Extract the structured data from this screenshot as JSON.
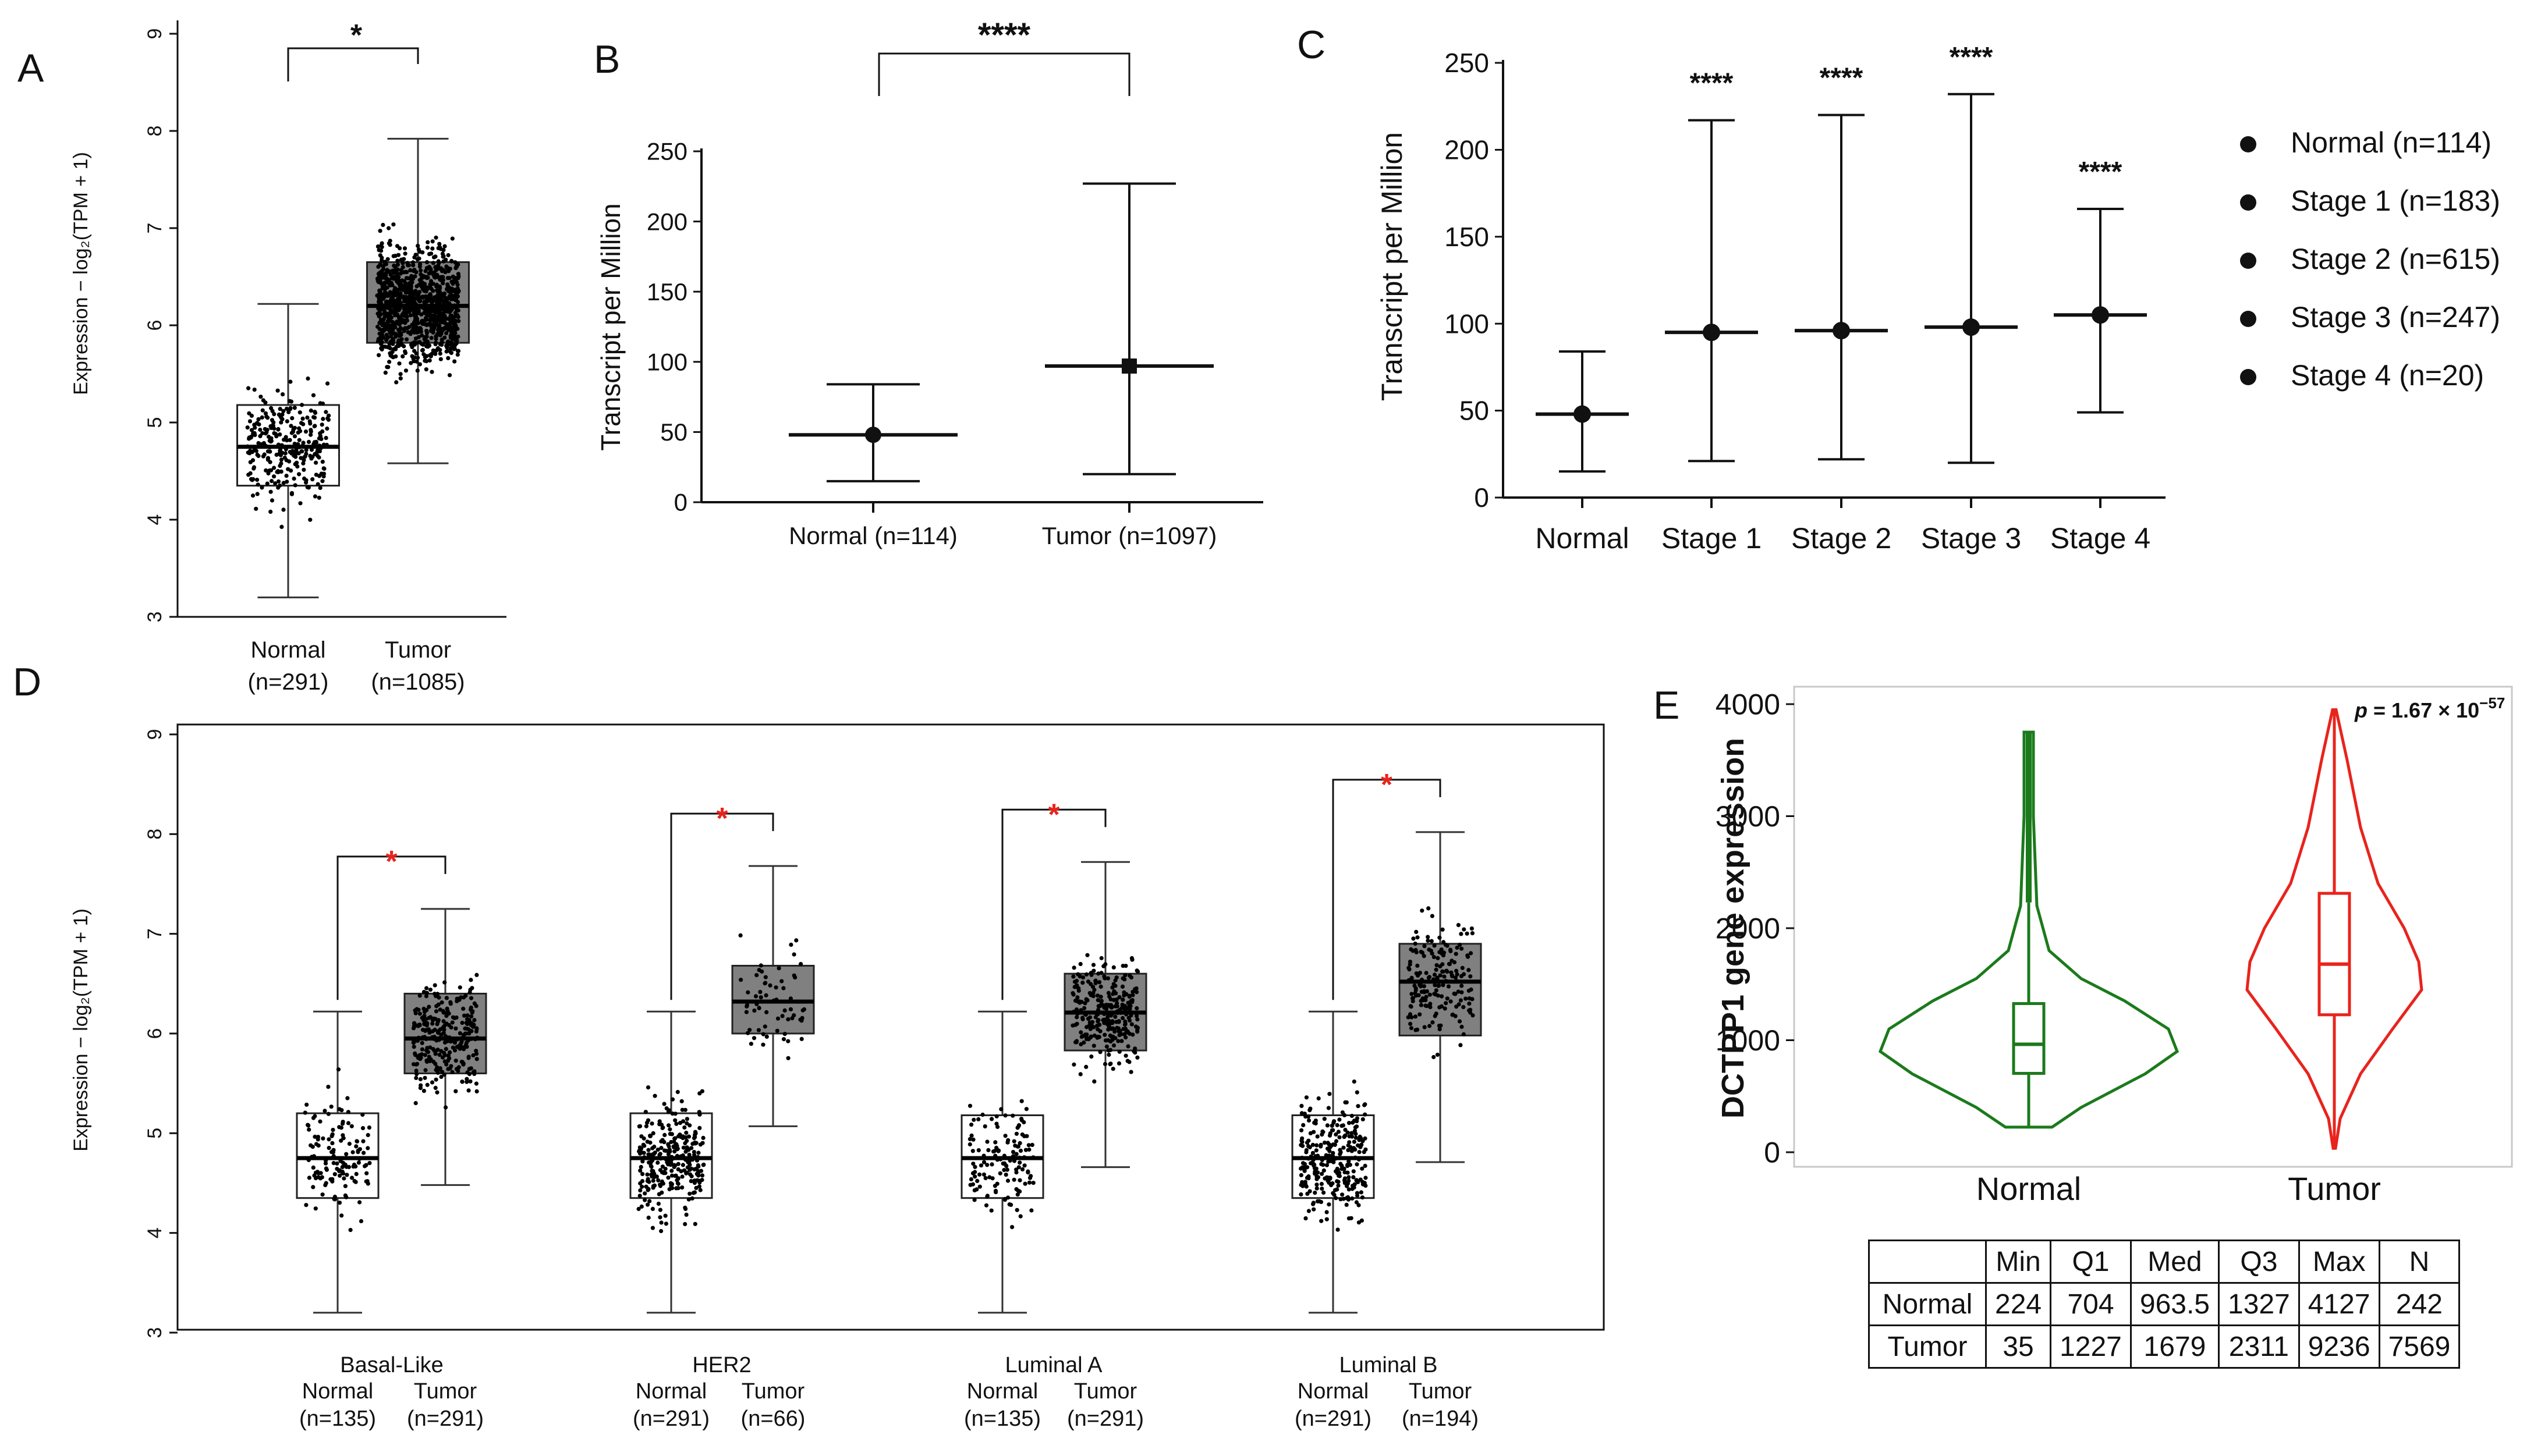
{
  "panel_labels": {
    "A": "A",
    "B": "B",
    "C": "C",
    "D": "D",
    "E": "E"
  },
  "table": {
    "headers": [
      "",
      "Min",
      "Q1",
      "Med",
      "Q3",
      "Max",
      "N"
    ],
    "rows": [
      [
        "Normal",
        "224",
        "704",
        "963.5",
        "1327",
        "4127",
        "242"
      ],
      [
        "Tumor",
        "35",
        "1227",
        "1679",
        "2311",
        "9236",
        "7569"
      ]
    ]
  },
  "colors": {
    "normal_violin": "#1b7a1b",
    "tumor_violin": "#e8241c",
    "tumor_box": "#808080",
    "sig_star_red": "#e8241c"
  },
  "chart_data": [
    {
      "id": "A",
      "type": "box",
      "ylabel": "Expression − log₂(TPM + 1)",
      "ylim": [
        3,
        9
      ],
      "yticks": [
        "3",
        "4",
        "5",
        "6",
        "7",
        "8",
        "9"
      ],
      "categories": [
        "Normal",
        "Tumor"
      ],
      "category_sub": [
        "(n=291)",
        "(n=1085)"
      ],
      "significance": "*",
      "boxes": [
        {
          "min": 3.2,
          "q1": 4.35,
          "median": 4.75,
          "q3": 5.18,
          "max": 6.22,
          "n_points": 291
        },
        {
          "min": 4.58,
          "q1": 5.82,
          "median": 6.2,
          "q3": 6.65,
          "max": 7.92,
          "n_points": 1085
        }
      ]
    },
    {
      "id": "B",
      "type": "errorbar",
      "ylabel": "Transcript per Million",
      "ylim": [
        0,
        250
      ],
      "yticks": [
        "0",
        "50",
        "100",
        "150",
        "200",
        "250"
      ],
      "categories": [
        "Normal (n=114)",
        "Tumor (n=1097)"
      ],
      "significance": "****",
      "series": [
        {
          "mean": 48,
          "low": 15,
          "high": 84,
          "marker": "circle"
        },
        {
          "mean": 97,
          "low": 20,
          "high": 227,
          "marker": "square"
        }
      ]
    },
    {
      "id": "C",
      "type": "errorbar",
      "ylabel": "Transcript per Million",
      "ylim": [
        0,
        250
      ],
      "yticks": [
        "0",
        "50",
        "100",
        "150",
        "200",
        "250"
      ],
      "categories": [
        "Normal",
        "Stage 1",
        "Stage 2",
        "Stage 3",
        "Stage 4"
      ],
      "significance": [
        "",
        "****",
        "****",
        "****",
        "****"
      ],
      "series": [
        {
          "mean": 48,
          "low": 15,
          "high": 84
        },
        {
          "mean": 95,
          "low": 21,
          "high": 217
        },
        {
          "mean": 96,
          "low": 22,
          "high": 220
        },
        {
          "mean": 98,
          "low": 20,
          "high": 232
        },
        {
          "mean": 105,
          "low": 49,
          "high": 166
        }
      ],
      "legend": [
        "Normal (n=114)",
        "Stage 1 (n=183)",
        "Stage 2 (n=615)",
        "Stage 3 (n=247)",
        "Stage 4  (n=20)"
      ],
      "legend_position": "right"
    },
    {
      "id": "D",
      "type": "box",
      "ylabel": "Expression − log₂(TPM + 1)",
      "ylim": [
        3,
        9
      ],
      "yticks": [
        "3",
        "4",
        "5",
        "6",
        "7",
        "8",
        "9"
      ],
      "groups": [
        {
          "name": "Basal-Like",
          "normal_label": "Normal",
          "tumor_label": "Tumor",
          "normal_n": "(n=135)",
          "tumor_n": "(n=291)",
          "normal": {
            "min": 3.2,
            "q1": 4.35,
            "median": 4.75,
            "q3": 5.2,
            "max": 6.22,
            "n_points": 135
          },
          "tumor": {
            "min": 4.48,
            "q1": 5.6,
            "median": 5.95,
            "q3": 6.4,
            "max": 7.25,
            "n_points": 291
          }
        },
        {
          "name": "HER2",
          "normal_label": "Normal",
          "tumor_label": "Tumor",
          "normal_n": "(n=291)",
          "tumor_n": "(n=66)",
          "normal": {
            "min": 3.2,
            "q1": 4.35,
            "median": 4.75,
            "q3": 5.2,
            "max": 6.22,
            "n_points": 291
          },
          "tumor": {
            "min": 5.07,
            "q1": 6.0,
            "median": 6.32,
            "q3": 6.68,
            "max": 7.68,
            "n_points": 66
          }
        },
        {
          "name": "Luminal A",
          "normal_label": "Normal",
          "tumor_label": "Tumor",
          "normal_n": "(n=135)",
          "tumor_n": "(n=291)",
          "normal": {
            "min": 3.2,
            "q1": 4.35,
            "median": 4.75,
            "q3": 5.18,
            "max": 6.22,
            "n_points": 135
          },
          "tumor": {
            "min": 4.66,
            "q1": 5.83,
            "median": 6.21,
            "q3": 6.6,
            "max": 7.72,
            "n_points": 291
          }
        },
        {
          "name": "Luminal B",
          "normal_label": "Normal",
          "tumor_label": "Tumor",
          "normal_n": "(n=291)",
          "tumor_n": "(n=194)",
          "normal": {
            "min": 3.2,
            "q1": 4.35,
            "median": 4.75,
            "q3": 5.18,
            "max": 6.22,
            "n_points": 291
          },
          "tumor": {
            "min": 4.71,
            "q1": 5.98,
            "median": 6.52,
            "q3": 6.9,
            "max": 8.02,
            "n_points": 194
          }
        }
      ],
      "significance": "*"
    },
    {
      "id": "E",
      "type": "violin",
      "ylabel": "DCTPP1 gene expression",
      "ylim": [
        0,
        4000
      ],
      "yticks": [
        "0",
        "1000",
        "2000",
        "3000",
        "4000"
      ],
      "categories": [
        "Normal",
        "Tumor"
      ],
      "p_label": "p",
      "p_value": " = 1.67 × 10",
      "p_exponent": "−57",
      "boxes": [
        {
          "min": 224,
          "q1": 704,
          "median": 963.5,
          "q3": 1327,
          "whisker_high": 2230,
          "top": 3750
        },
        {
          "min": 35,
          "q1": 1227,
          "median": 1679,
          "q3": 2311,
          "whisker_high": 3950,
          "top": 3950
        }
      ]
    }
  ]
}
